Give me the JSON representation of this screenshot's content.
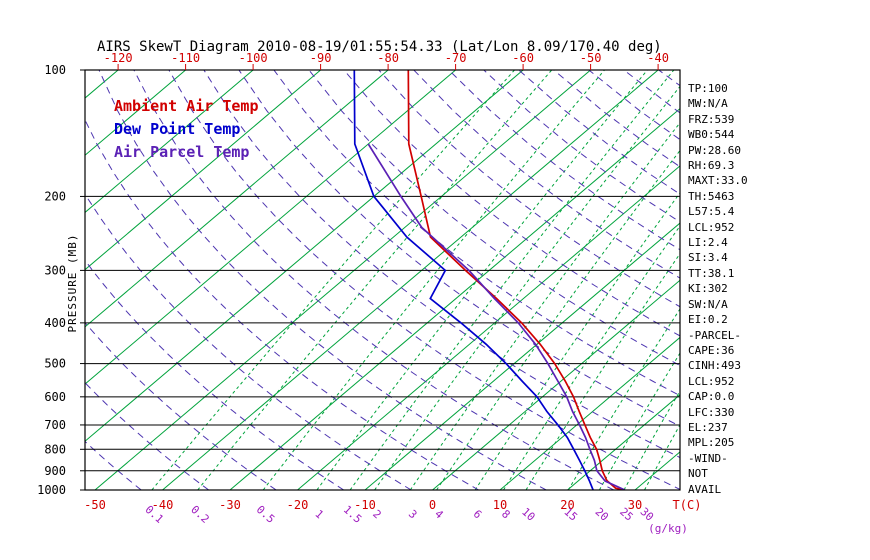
{
  "chart_data": {
    "type": "line",
    "variant": "skew-t-log-p-sounding",
    "title": "AIRS SkewT Diagram 2010-08-19/01:55:54.33 (Lat/Lon 8.09/170.40 deg)",
    "x_axis": {
      "label": "T(C)",
      "ticks_top": [
        -120,
        -110,
        -100,
        -90,
        -80,
        -70,
        -60,
        -50,
        -40
      ],
      "ticks_bottom": [
        -50,
        -40,
        -30,
        -20,
        -10,
        0,
        10,
        20,
        30
      ],
      "color": "#D10000"
    },
    "y_axis": {
      "label": "PRESSURE (MB)",
      "ticks": [
        100,
        200,
        300,
        400,
        500,
        600,
        700,
        800,
        900,
        1000
      ],
      "scale": "log",
      "range": [
        100,
        1000
      ]
    },
    "isotherms": {
      "start_c": -140,
      "end_c": 40,
      "step_c": 10,
      "color": "#00A33C",
      "style": "solid"
    },
    "dry_adiabats": {
      "start_k": 220,
      "end_k": 460,
      "step_k": 10,
      "color": "#4D35B0",
      "style": "dashed"
    },
    "mixing_ratio_lines": {
      "values": [
        0.1,
        0.2,
        0.5,
        1,
        1.5,
        2,
        3,
        4,
        6,
        8,
        10,
        15,
        20,
        25,
        30
      ],
      "unit_label": "(g/kg)",
      "label_color": "#A020C0",
      "line_color": "#00A33C",
      "style": "dashed"
    },
    "series": [
      {
        "id": "ambient-temp",
        "name": "Ambient Air Temp",
        "color": "#D10000",
        "points": [
          [
            1000,
            28.5
          ],
          [
            990,
            26.8
          ],
          [
            950,
            24.2
          ],
          [
            900,
            21.8
          ],
          [
            850,
            19.6
          ],
          [
            800,
            17.2
          ],
          [
            750,
            14.2
          ],
          [
            700,
            11.2
          ],
          [
            650,
            8.0
          ],
          [
            600,
            4.6
          ],
          [
            550,
            0.6
          ],
          [
            500,
            -4.0
          ],
          [
            450,
            -9.5
          ],
          [
            400,
            -16.0
          ],
          [
            350,
            -24.0
          ],
          [
            300,
            -33.5
          ],
          [
            250,
            -44.5
          ],
          [
            200,
            -53.0
          ],
          [
            150,
            -64.0
          ],
          [
            100,
            -77.0
          ]
        ]
      },
      {
        "id": "dew-point",
        "name": "Dew Point Temp",
        "color": "#0000CD",
        "points": [
          [
            1000,
            23.8
          ],
          [
            950,
            21.6
          ],
          [
            900,
            19.2
          ],
          [
            850,
            16.6
          ],
          [
            800,
            13.8
          ],
          [
            750,
            10.8
          ],
          [
            700,
            7.2
          ],
          [
            650,
            3.2
          ],
          [
            600,
            -0.8
          ],
          [
            550,
            -5.8
          ],
          [
            500,
            -11.2
          ],
          [
            450,
            -17.5
          ],
          [
            400,
            -25.0
          ],
          [
            350,
            -33.8
          ],
          [
            300,
            -36.5
          ],
          [
            250,
            -48.0
          ],
          [
            200,
            -60.0
          ],
          [
            150,
            -72.0
          ],
          [
            100,
            -85.0
          ]
        ]
      },
      {
        "id": "air-parcel",
        "name": "Air Parcel Temp",
        "color": "#5B21B5",
        "points": [
          [
            1000,
            28.5
          ],
          [
            952,
            24.0
          ],
          [
            900,
            21.0
          ],
          [
            850,
            18.8
          ],
          [
            800,
            16.2
          ],
          [
            750,
            13.5
          ],
          [
            700,
            10.4
          ],
          [
            650,
            7.0
          ],
          [
            600,
            3.6
          ],
          [
            550,
            -0.5
          ],
          [
            500,
            -5.0
          ],
          [
            450,
            -10.2
          ],
          [
            400,
            -16.5
          ],
          [
            350,
            -24.3
          ],
          [
            300,
            -33.0
          ],
          [
            250,
            -44.2
          ],
          [
            237,
            -47.5
          ],
          [
            200,
            -56.0
          ],
          [
            150,
            -70.0
          ]
        ]
      }
    ]
  },
  "stats_panel": {
    "lines": [
      "TP:100",
      "MW:N/A",
      "FRZ:539",
      "WB0:544",
      "PW:28.60",
      "RH:69.3",
      "MAXT:33.0",
      "TH:5463",
      "L57:5.4",
      "LCL:952",
      "LI:2.4",
      "SI:3.4",
      "TT:38.1",
      "KI:302",
      "SW:N/A",
      "EI:0.2",
      "-PARCEL-",
      "CAPE:36",
      "CINH:493",
      "LCL:952",
      "CAP:0.0",
      "LFC:330",
      "EL:237",
      "MPL:205",
      "-WIND-",
      "NOT",
      "AVAIL"
    ]
  }
}
